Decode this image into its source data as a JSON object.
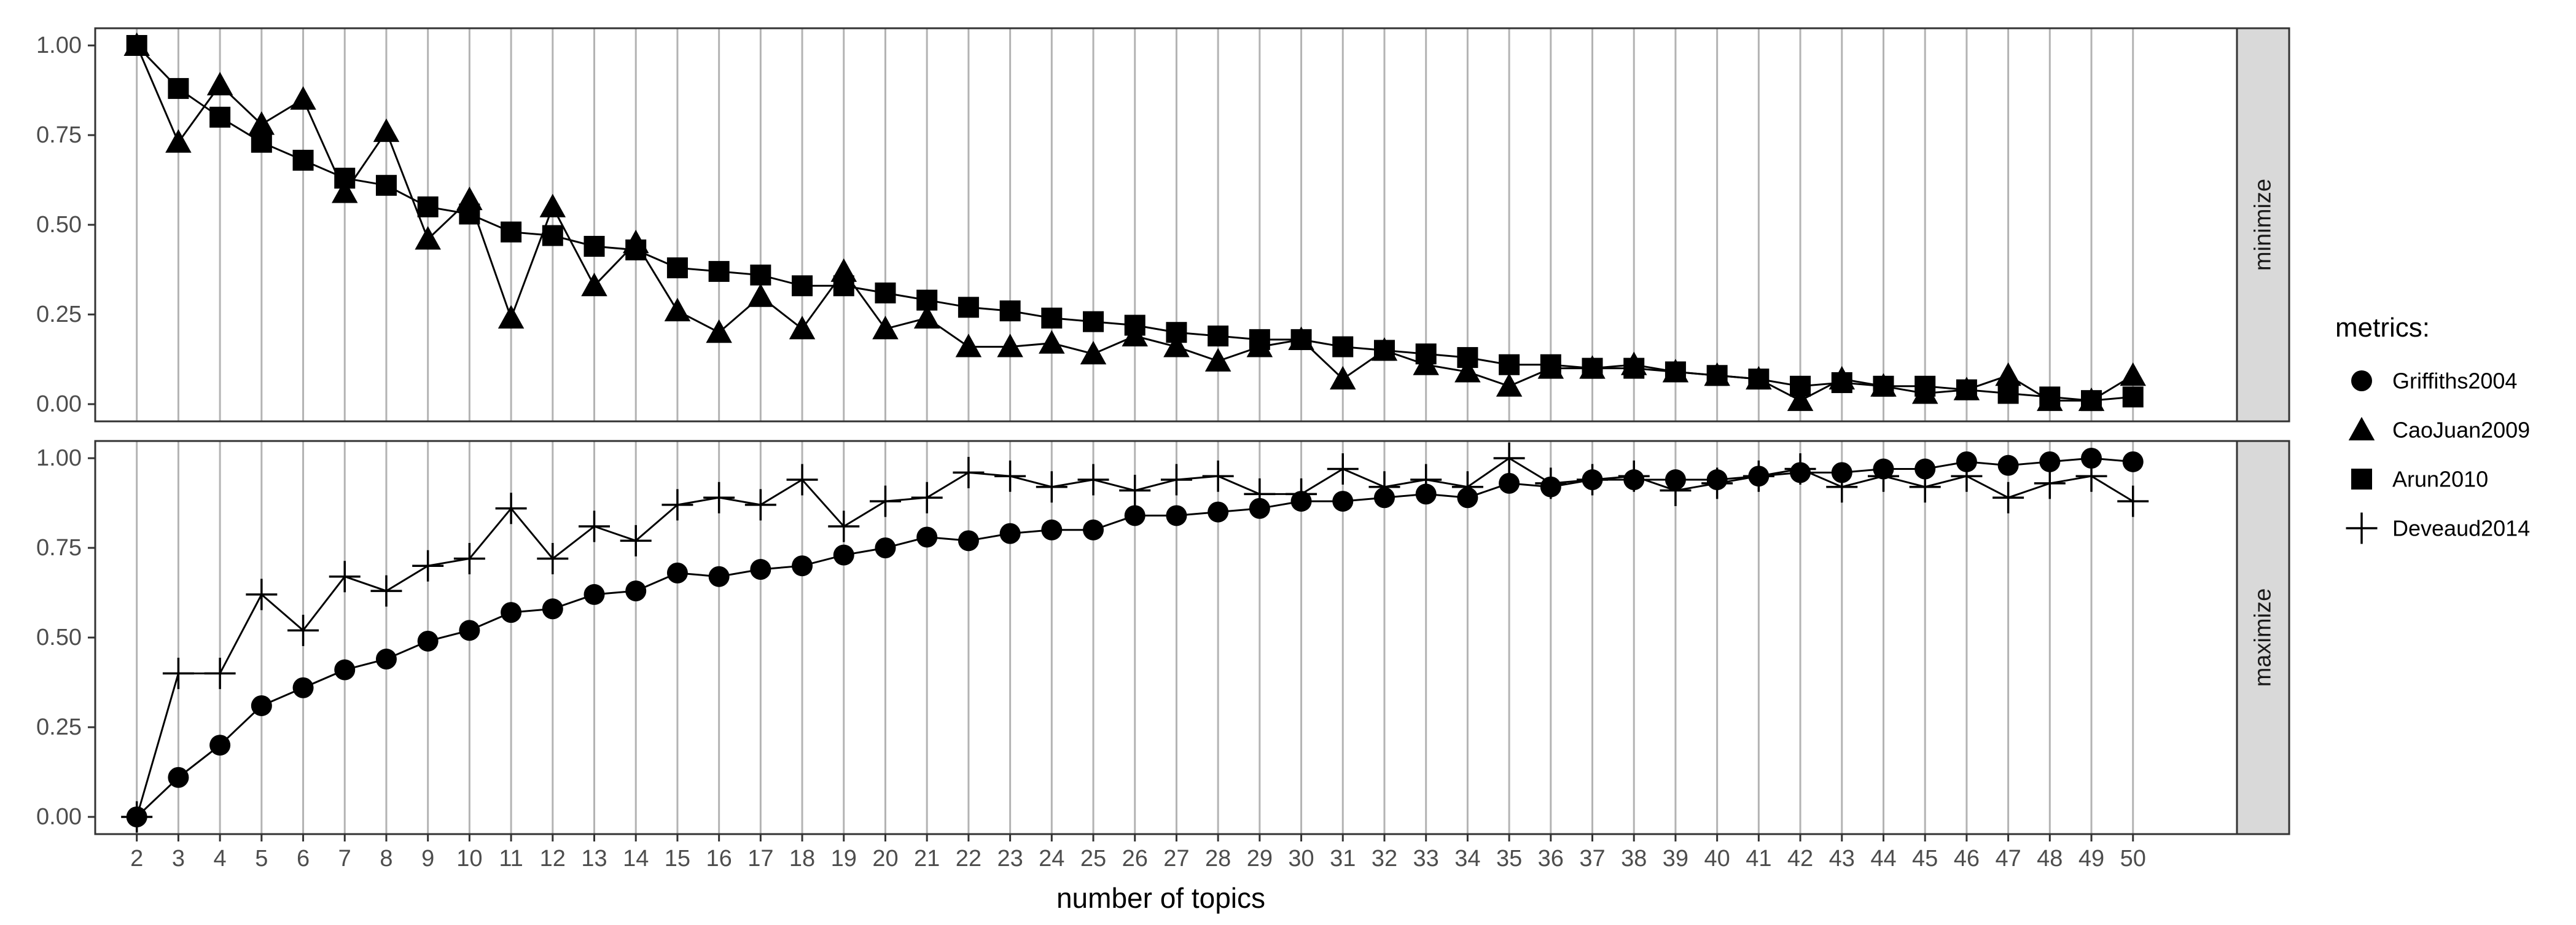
{
  "chart_data": {
    "type": "line",
    "xlabel": "number of topics",
    "x": [
      2,
      3,
      4,
      5,
      6,
      7,
      8,
      9,
      10,
      11,
      12,
      13,
      14,
      15,
      16,
      17,
      18,
      19,
      20,
      21,
      22,
      23,
      24,
      25,
      26,
      27,
      28,
      29,
      30,
      31,
      32,
      33,
      34,
      35,
      36,
      37,
      38,
      39,
      40,
      41,
      42,
      43,
      44,
      45,
      46,
      47,
      48,
      49,
      50
    ],
    "ylim": [
      0,
      1
    ],
    "y_ticks": [
      "0.00",
      "0.25",
      "0.50",
      "0.75",
      "1.00"
    ],
    "grid": "vertical",
    "legend": {
      "title": "metrics:",
      "position": "right",
      "entries": [
        "Griffiths2004",
        "CaoJuan2009",
        "Arun2010",
        "Deveaud2014"
      ]
    },
    "panels": [
      {
        "strip": "minimize",
        "series": [
          {
            "name": "CaoJuan2009",
            "marker": "triangle",
            "values": [
              1.0,
              0.73,
              0.89,
              0.78,
              0.85,
              0.59,
              0.76,
              0.46,
              0.57,
              0.24,
              0.55,
              0.33,
              0.45,
              0.26,
              0.2,
              0.3,
              0.21,
              0.37,
              0.21,
              0.24,
              0.16,
              0.16,
              0.17,
              0.14,
              0.19,
              0.16,
              0.12,
              0.16,
              0.18,
              0.07,
              0.15,
              0.11,
              0.09,
              0.05,
              0.1,
              0.1,
              0.11,
              0.09,
              0.08,
              0.07,
              0.01,
              0.07,
              0.05,
              0.03,
              0.04,
              0.08,
              0.01,
              0.01,
              0.08
            ]
          },
          {
            "name": "Arun2010",
            "marker": "square",
            "values": [
              1.0,
              0.88,
              0.8,
              0.73,
              0.68,
              0.63,
              0.61,
              0.55,
              0.53,
              0.48,
              0.47,
              0.44,
              0.43,
              0.38,
              0.37,
              0.36,
              0.33,
              0.33,
              0.31,
              0.29,
              0.27,
              0.26,
              0.24,
              0.23,
              0.22,
              0.2,
              0.19,
              0.18,
              0.18,
              0.16,
              0.15,
              0.14,
              0.13,
              0.11,
              0.11,
              0.1,
              0.1,
              0.09,
              0.08,
              0.07,
              0.05,
              0.06,
              0.05,
              0.05,
              0.04,
              0.03,
              0.02,
              0.01,
              0.02
            ]
          }
        ]
      },
      {
        "strip": "maximize",
        "series": [
          {
            "name": "Griffiths2004",
            "marker": "circle",
            "values": [
              0.0,
              0.11,
              0.2,
              0.31,
              0.36,
              0.41,
              0.44,
              0.49,
              0.52,
              0.57,
              0.58,
              0.62,
              0.63,
              0.68,
              0.67,
              0.69,
              0.7,
              0.73,
              0.75,
              0.78,
              0.77,
              0.79,
              0.8,
              0.8,
              0.84,
              0.84,
              0.85,
              0.86,
              0.88,
              0.88,
              0.89,
              0.9,
              0.89,
              0.93,
              0.92,
              0.94,
              0.94,
              0.94,
              0.94,
              0.95,
              0.96,
              0.96,
              0.97,
              0.97,
              0.99,
              0.98,
              0.99,
              1.0,
              0.99
            ]
          },
          {
            "name": "Deveaud2014",
            "marker": "plus",
            "values": [
              0.0,
              0.4,
              0.4,
              0.62,
              0.52,
              0.67,
              0.63,
              0.7,
              0.72,
              0.86,
              0.72,
              0.81,
              0.77,
              0.87,
              0.89,
              0.87,
              0.94,
              0.81,
              0.88,
              0.89,
              0.96,
              0.95,
              0.92,
              0.94,
              0.91,
              0.94,
              0.95,
              0.9,
              0.9,
              0.97,
              0.92,
              0.94,
              0.92,
              1.0,
              0.93,
              0.94,
              0.95,
              0.91,
              0.93,
              0.95,
              0.97,
              0.92,
              0.95,
              0.92,
              0.95,
              0.89,
              0.93,
              0.95,
              0.88
            ]
          }
        ]
      }
    ]
  }
}
